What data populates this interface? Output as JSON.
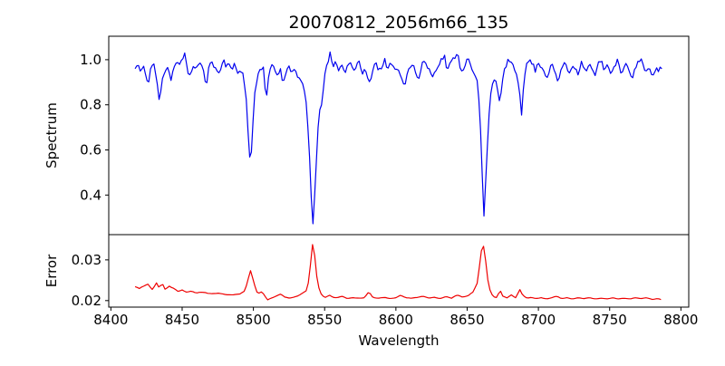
{
  "figure": {
    "title": "20070812_2056m66_135",
    "xlabel": "Wavelength",
    "background": "#ffffff",
    "spine_color": "#000000"
  },
  "chart_data": [
    {
      "type": "line",
      "panel": "spectrum",
      "series_name": "Spectrum",
      "title": "20070812_2056m66_135",
      "ylabel": "Spectrum",
      "color": "#0000ee",
      "line_width": 1.2,
      "grid": false,
      "legend": "none",
      "xlim": [
        8398.5,
        8805.5
      ],
      "ylim": [
        0.2245,
        1.104
      ],
      "xticks": [
        8400,
        8450,
        8500,
        8550,
        8600,
        8650,
        8700,
        8750,
        8800
      ],
      "xtick_labels": [],
      "yticks": [
        0.4,
        0.6,
        0.8,
        1.0
      ],
      "ytick_labels": [
        "0.4",
        "0.6",
        "0.8",
        "1.0"
      ],
      "absorption_line_centers": [
        8498,
        8542,
        8662,
        8688
      ],
      "x": [
        8417,
        8419,
        8421,
        8423,
        8425,
        8426,
        8428,
        8430,
        8432,
        8434,
        8436,
        8438,
        8440,
        8442,
        8444,
        8446,
        8448,
        8450,
        8452,
        8454,
        8456,
        8458,
        8460,
        8462,
        8464,
        8466,
        8467,
        8469,
        8471,
        8473,
        8476,
        8479,
        8481,
        8483,
        8485,
        8487,
        8489,
        8491,
        8493,
        8495,
        8497,
        8498,
        8499,
        8501,
        8503,
        8505,
        8507,
        8509,
        8511,
        8513,
        8515,
        8517,
        8519,
        8521,
        8523,
        8525,
        8527,
        8529,
        8531,
        8533,
        8535,
        8537,
        8539,
        8541,
        8542,
        8543,
        8545,
        8546,
        8548,
        8550,
        8552,
        8554,
        8556,
        8558,
        8560,
        8562,
        8564,
        8566,
        8568,
        8570,
        8572,
        8574,
        8576,
        8578,
        8580,
        8582,
        8584,
        8586,
        8588,
        8590,
        8592,
        8594,
        8596,
        8598,
        8600,
        8602,
        8604,
        8606,
        8608,
        8610,
        8612,
        8614,
        8616,
        8618,
        8620,
        8622,
        8624,
        8626,
        8628,
        8630,
        8632,
        8634,
        8636,
        8638,
        8640,
        8642,
        8643,
        8645,
        8647,
        8649,
        8651,
        8653,
        8655,
        8657,
        8659,
        8661,
        8662,
        8663,
        8665,
        8667,
        8669,
        8671,
        8673,
        8675,
        8677,
        8679,
        8681,
        8683,
        8685,
        8687,
        8688,
        8690,
        8692,
        8694,
        8696,
        8698,
        8700,
        8702,
        8704,
        8706,
        8708,
        8710,
        8712,
        8714,
        8716,
        8718,
        8720,
        8722,
        8724,
        8726,
        8728,
        8730,
        8732,
        8734,
        8736,
        8738,
        8740,
        8742,
        8744,
        8746,
        8748,
        8750,
        8752,
        8754,
        8756,
        8758,
        8760,
        8762,
        8764,
        8766,
        8768,
        8770,
        8772,
        8774,
        8776,
        8778,
        8780,
        8782,
        8784,
        8786,
        8787
      ],
      "y": [
        0.96,
        0.98,
        0.94,
        0.97,
        0.93,
        0.87,
        0.97,
        0.98,
        0.92,
        0.81,
        0.92,
        0.95,
        0.97,
        0.91,
        0.96,
        0.99,
        0.97,
        1.0,
        1.03,
        0.95,
        0.92,
        0.98,
        0.96,
        0.99,
        0.97,
        0.92,
        0.87,
        0.98,
        1.0,
        0.96,
        0.94,
        1.0,
        0.97,
        0.99,
        0.95,
        0.98,
        0.94,
        0.96,
        0.93,
        0.82,
        0.6,
        0.52,
        0.64,
        0.86,
        0.93,
        0.96,
        0.97,
        0.81,
        0.94,
        0.98,
        0.95,
        0.93,
        0.96,
        0.89,
        0.95,
        0.98,
        0.94,
        0.96,
        0.93,
        0.91,
        0.88,
        0.81,
        0.63,
        0.33,
        0.26,
        0.4,
        0.65,
        0.76,
        0.81,
        0.93,
        0.98,
        1.03,
        0.96,
        1.0,
        0.95,
        0.98,
        0.94,
        0.97,
        1.0,
        0.95,
        0.97,
        0.99,
        0.94,
        0.96,
        0.92,
        0.89,
        0.97,
        0.99,
        0.95,
        0.97,
        1.0,
        0.95,
        0.98,
        0.96,
        0.97,
        0.95,
        0.92,
        0.88,
        0.95,
        0.97,
        0.98,
        0.94,
        0.91,
        0.97,
        1.0,
        0.97,
        0.95,
        0.92,
        0.96,
        0.98,
        1.0,
        1.02,
        0.95,
        0.98,
        1.0,
        1.02,
        1.04,
        0.97,
        0.95,
        0.99,
        1.0,
        0.96,
        0.93,
        0.91,
        0.76,
        0.42,
        0.28,
        0.46,
        0.73,
        0.87,
        0.91,
        0.89,
        0.8,
        0.92,
        0.97,
        1.0,
        0.98,
        0.96,
        0.93,
        0.85,
        0.74,
        0.93,
        0.98,
        1.0,
        0.98,
        0.95,
        0.99,
        0.97,
        0.95,
        0.92,
        0.96,
        0.98,
        0.93,
        0.9,
        0.96,
        0.99,
        0.96,
        0.94,
        0.98,
        0.96,
        0.94,
        0.99,
        0.97,
        0.95,
        0.98,
        0.95,
        0.93,
        0.98,
        1.0,
        0.96,
        0.98,
        0.95,
        0.94,
        0.98,
        1.0,
        0.93,
        0.96,
        0.98,
        0.95,
        0.91,
        0.97,
        0.99,
        1.01,
        0.96,
        0.94,
        0.97,
        0.93,
        0.96,
        0.95,
        0.97,
        0.96
      ],
      "noise": {
        "amplitude": 0.012,
        "seed": 11,
        "step": 1.2
      }
    },
    {
      "type": "line",
      "panel": "error",
      "series_name": "Error",
      "ylabel": "Error",
      "xlabel": "Wavelength",
      "color": "#ee0000",
      "line_width": 1.2,
      "grid": false,
      "legend": "none",
      "xlim": [
        8398.5,
        8805.5
      ],
      "ylim": [
        0.0184,
        0.0362
      ],
      "xticks": [
        8400,
        8450,
        8500,
        8550,
        8600,
        8650,
        8700,
        8750,
        8800
      ],
      "xtick_labels": [
        "8400",
        "8450",
        "8500",
        "8550",
        "8600",
        "8650",
        "8700",
        "8750",
        "8800"
      ],
      "yticks": [
        0.02,
        0.03
      ],
      "ytick_labels": [
        "0.02",
        "0.03"
      ],
      "error_peak_centers": [
        8498,
        8542,
        8662
      ],
      "x": [
        8417,
        8420,
        8423,
        8426,
        8429,
        8432,
        8434,
        8436,
        8438,
        8441,
        8444,
        8447,
        8450,
        8453,
        8456,
        8460,
        8464,
        8468,
        8472,
        8476,
        8480,
        8484,
        8488,
        8491,
        8494,
        8496,
        8498,
        8500,
        8502,
        8504,
        8506,
        8508,
        8510,
        8513,
        8516,
        8519,
        8522,
        8525,
        8528,
        8531,
        8534,
        8537,
        8539,
        8541,
        8542,
        8543,
        8545,
        8547,
        8549,
        8551,
        8553,
        8556,
        8559,
        8562,
        8566,
        8570,
        8574,
        8578,
        8581,
        8584,
        8588,
        8592,
        8596,
        8600,
        8603,
        8607,
        8611,
        8615,
        8619,
        8623,
        8627,
        8631,
        8635,
        8639,
        8643,
        8647,
        8651,
        8654,
        8657,
        8660,
        8661,
        8663,
        8665,
        8667,
        8669,
        8671,
        8673,
        8675,
        8678,
        8681,
        8684,
        8687,
        8689,
        8692,
        8695,
        8698,
        8702,
        8706,
        8710,
        8713,
        8716,
        8720,
        8724,
        8728,
        8732,
        8736,
        8740,
        8744,
        8748,
        8752,
        8756,
        8760,
        8764,
        8768,
        8772,
        8776,
        8780,
        8784,
        8787
      ],
      "y": [
        0.0234,
        0.023,
        0.0236,
        0.024,
        0.0227,
        0.0243,
        0.023,
        0.0244,
        0.0228,
        0.0235,
        0.023,
        0.0223,
        0.0226,
        0.0221,
        0.0223,
        0.0219,
        0.0221,
        0.0218,
        0.0217,
        0.0218,
        0.0215,
        0.0214,
        0.0215,
        0.0217,
        0.0224,
        0.0248,
        0.0274,
        0.025,
        0.0222,
        0.0218,
        0.0223,
        0.0211,
        0.0202,
        0.0207,
        0.0211,
        0.0216,
        0.0209,
        0.0206,
        0.0208,
        0.0211,
        0.0217,
        0.0224,
        0.025,
        0.0325,
        0.035,
        0.0312,
        0.0242,
        0.0219,
        0.0211,
        0.0207,
        0.0214,
        0.0208,
        0.0207,
        0.0211,
        0.0205,
        0.0207,
        0.0206,
        0.0207,
        0.0222,
        0.0207,
        0.0206,
        0.0208,
        0.0205,
        0.0207,
        0.0213,
        0.0207,
        0.0206,
        0.0208,
        0.0211,
        0.0206,
        0.0208,
        0.0205,
        0.021,
        0.0206,
        0.0214,
        0.0208,
        0.0213,
        0.0221,
        0.0242,
        0.0322,
        0.0345,
        0.0298,
        0.0236,
        0.0216,
        0.0209,
        0.0207,
        0.0227,
        0.0211,
        0.0207,
        0.0214,
        0.0207,
        0.0227,
        0.0213,
        0.0206,
        0.0208,
        0.0205,
        0.0207,
        0.0204,
        0.0208,
        0.0211,
        0.0205,
        0.0207,
        0.0204,
        0.0207,
        0.0205,
        0.0207,
        0.0204,
        0.0206,
        0.0204,
        0.0207,
        0.0204,
        0.0206,
        0.0204,
        0.0207,
        0.0205,
        0.0207,
        0.0203,
        0.0205,
        0.0201
      ],
      "noise": {
        "amplitude": 0.00022,
        "seed": 5,
        "step": 1.5
      }
    }
  ]
}
